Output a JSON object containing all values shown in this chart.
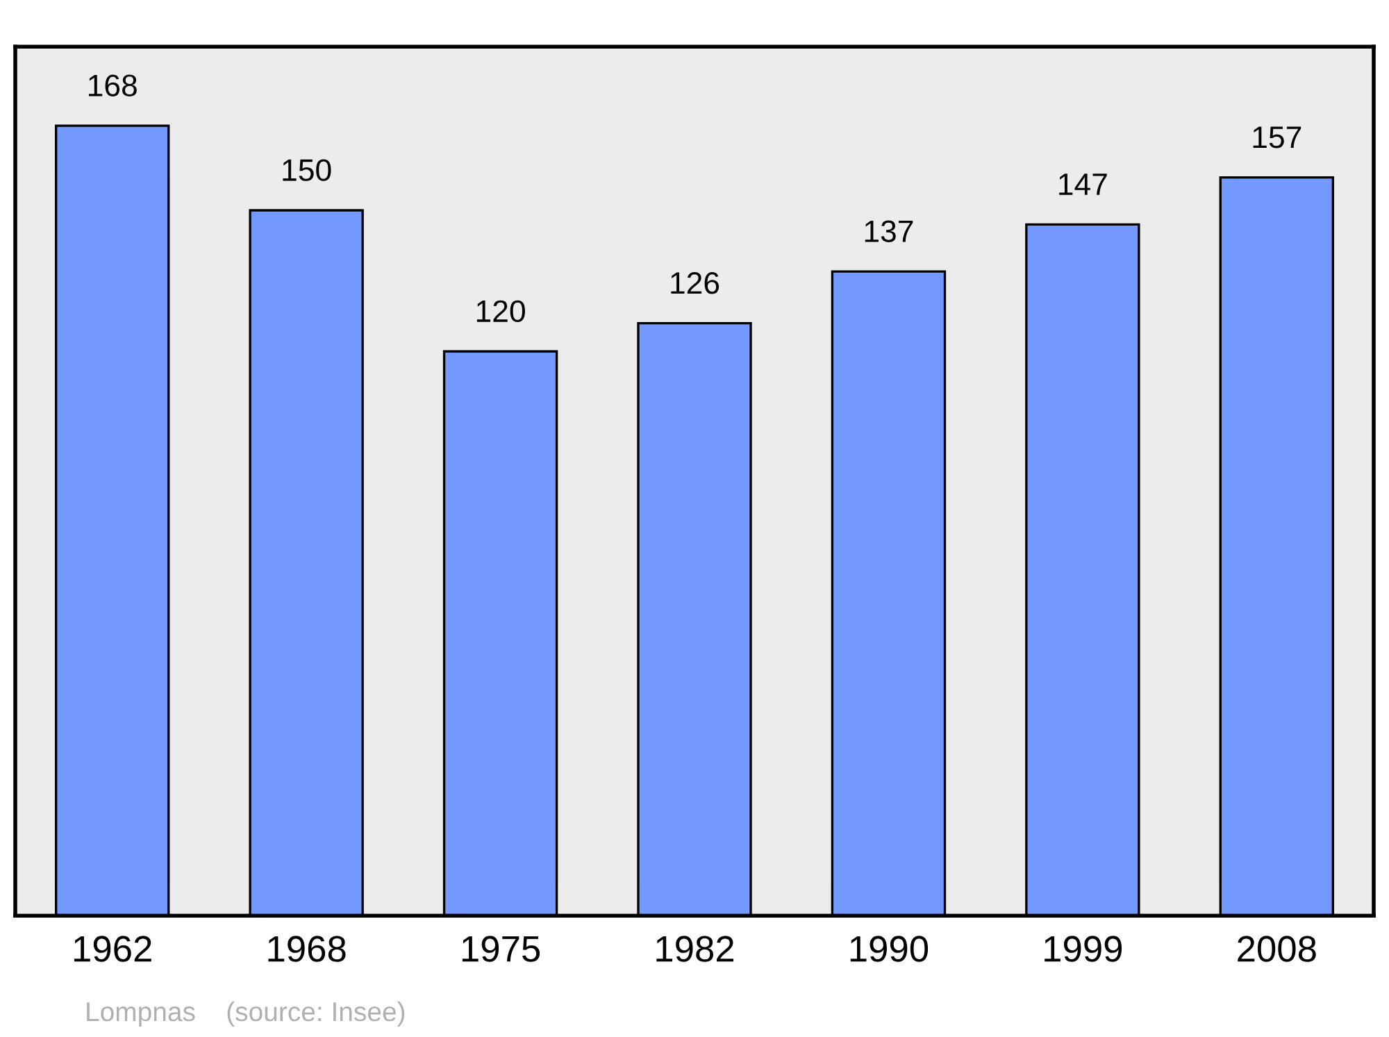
{
  "chart_data": {
    "type": "bar",
    "categories": [
      "1962",
      "1968",
      "1975",
      "1982",
      "1990",
      "1999",
      "2008"
    ],
    "values": [
      168,
      150,
      120,
      126,
      137,
      147,
      157
    ],
    "color": "#7399ff",
    "data_labels": true,
    "grid": false,
    "annotations": [
      "Lompnas    (source: Insee)"
    ]
  }
}
